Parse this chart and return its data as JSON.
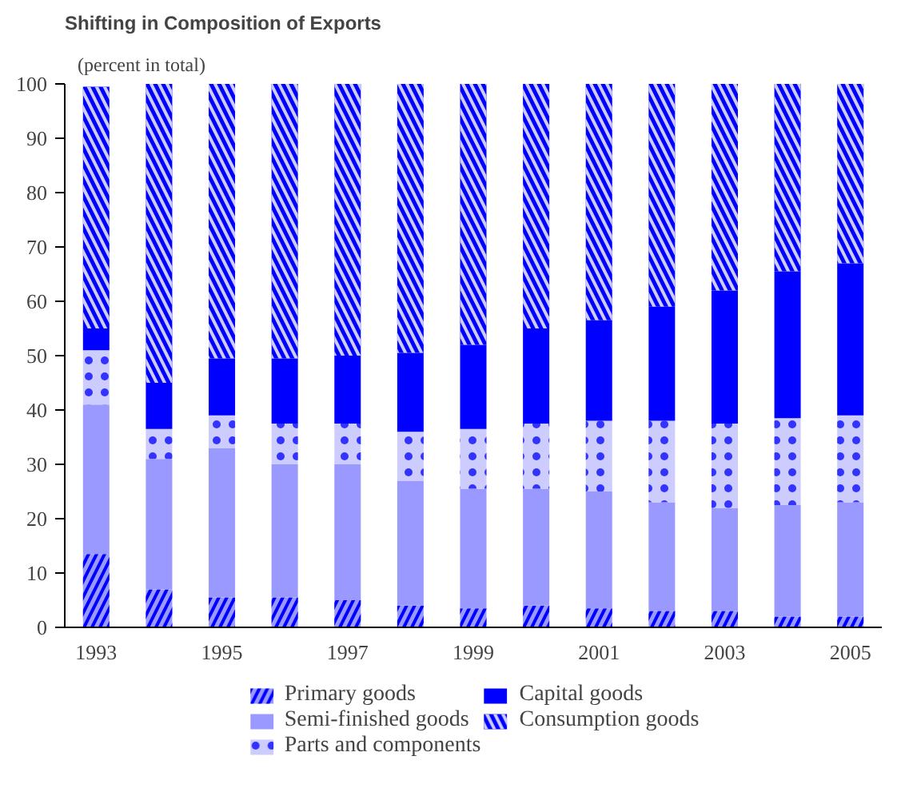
{
  "chart_data": {
    "type": "bar",
    "stacked": true,
    "title": "Shifting in Composition of Exports",
    "subtitle": "(percent in total)",
    "categories": [
      "1993",
      null,
      "1995",
      null,
      "1997",
      null,
      "1999",
      null,
      "2001",
      null,
      "2003",
      null,
      "2005"
    ],
    "series": [
      {
        "name": "Primary goods",
        "color": "#9999ff",
        "values": [
          13.5,
          7,
          5.5,
          5.5,
          5,
          4,
          3.5,
          4,
          3.5,
          3,
          3,
          2,
          2
        ]
      },
      {
        "name": "Semi-finished goods",
        "color": "#9999ff",
        "values": [
          27.5,
          24,
          27.5,
          24.5,
          25,
          23,
          22,
          21.5,
          21.5,
          20,
          19,
          20.5,
          21
        ]
      },
      {
        "name": "Parts and components",
        "color": "#ccccff",
        "values": [
          10,
          5.5,
          6,
          7.5,
          7.5,
          9,
          11,
          12,
          13,
          15,
          15.5,
          16,
          16
        ]
      },
      {
        "name": "Capital goods",
        "color": "#0000ff",
        "values": [
          4,
          8.5,
          10.5,
          12,
          12.5,
          14.5,
          15.5,
          17.5,
          18.5,
          21,
          24.5,
          27,
          28
        ]
      },
      {
        "name": "Consumption goods",
        "color": "#0000ff",
        "values": [
          44.5,
          55,
          50.5,
          50.5,
          50,
          49.5,
          48,
          45,
          43.5,
          41,
          38,
          34.5,
          33
        ]
      }
    ],
    "ylim": [
      0,
      100
    ],
    "yticks": [
      0,
      10,
      20,
      30,
      40,
      50,
      60,
      70,
      80,
      90,
      100
    ],
    "grid": false,
    "legend": "bottom"
  }
}
